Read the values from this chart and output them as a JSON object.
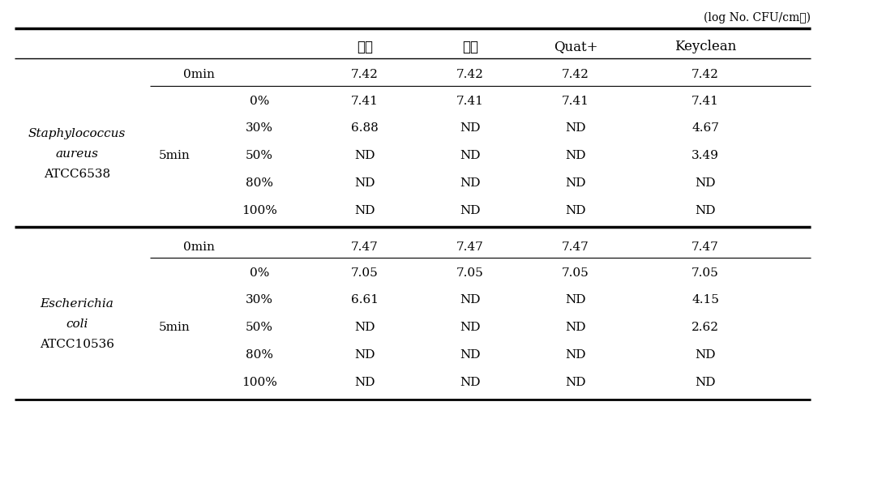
{
  "unit_label": "(log No. CFU/cm㎡)",
  "col_headers": [
    "주정",
    "락스",
    "Quat+",
    "Keyclean"
  ],
  "figsize": [
    11.04,
    6.17
  ],
  "dpi": 100,
  "background_color": "#ffffff",
  "section1": {
    "organism_line1": "Staphylococcus",
    "organism_line2": "aureus",
    "organism_line3": "ATCC6538",
    "omin_row": [
      "7.42",
      "7.42",
      "7.42",
      "7.42"
    ],
    "min5_rows": [
      [
        "0%",
        "7.41",
        "7.41",
        "7.41",
        "7.41"
      ],
      [
        "30%",
        "6.88",
        "ND",
        "ND",
        "4.67"
      ],
      [
        "50%",
        "ND",
        "ND",
        "ND",
        "3.49"
      ],
      [
        "80%",
        "ND",
        "ND",
        "ND",
        "ND"
      ],
      [
        "100%",
        "ND",
        "ND",
        "ND",
        "ND"
      ]
    ]
  },
  "section2": {
    "organism_line1": "Escherichia",
    "organism_line2": "coli",
    "organism_line3": "ATCC10536",
    "omin_row": [
      "7.47",
      "7.47",
      "7.47",
      "7.47"
    ],
    "min5_rows": [
      [
        "0%",
        "7.05",
        "7.05",
        "7.05",
        "7.05"
      ],
      [
        "30%",
        "6.61",
        "ND",
        "ND",
        "4.15"
      ],
      [
        "50%",
        "ND",
        "ND",
        "ND",
        "2.62"
      ],
      [
        "80%",
        "ND",
        "ND",
        "ND",
        "ND"
      ],
      [
        "100%",
        "ND",
        "ND",
        "ND",
        "ND"
      ]
    ]
  }
}
